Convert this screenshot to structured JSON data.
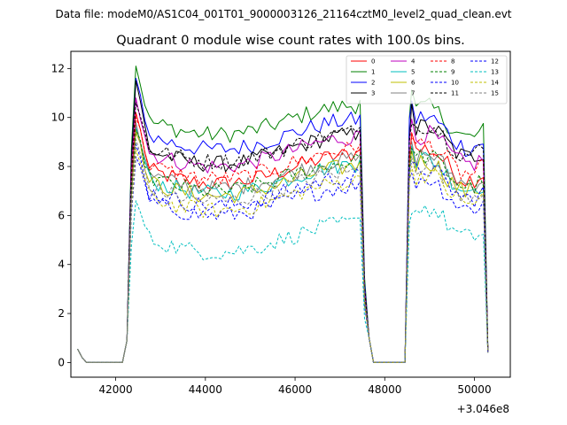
{
  "chart_data": {
    "type": "line",
    "suptitle": "Data file: modeM0/AS1C04_001T01_9000003126_21164cztM0_level2_quad_clean.evt",
    "title": "Quadrant 0 module wise count rates with 100.0s bins.",
    "xlabel": "",
    "ylabel": "",
    "x_offset_label": "+3.046e8",
    "xlim": [
      41000,
      50800
    ],
    "ylim": [
      -0.6,
      12.7
    ],
    "x_ticks": [
      42000,
      44000,
      46000,
      48000,
      50000
    ],
    "x_tick_labels": [
      "42000",
      "44000",
      "46000",
      "48000",
      "50000"
    ],
    "y_ticks": [
      0,
      2,
      4,
      6,
      8,
      10,
      12
    ],
    "y_tick_labels": [
      "0",
      "2",
      "4",
      "6",
      "8",
      "10",
      "12"
    ],
    "legend_position": "top-right",
    "time_bins": {
      "bin_width": 100,
      "seg1_start": 41150,
      "seg1_end": 47550,
      "gap1_end": 48500,
      "seg2_start": 48600,
      "seg2_end": 50350
    },
    "series": [
      {
        "name": "0",
        "color": "#ff0000",
        "dashed": false,
        "level": 7.9,
        "peak": 10.2,
        "seg2": 7.6,
        "tail": 0.45
      },
      {
        "name": "1",
        "color": "#008000",
        "dashed": false,
        "level": 9.9,
        "peak": 12.1,
        "seg2": 9.3,
        "tail": 0.6
      },
      {
        "name": "2",
        "color": "#0000ff",
        "dashed": false,
        "level": 9.3,
        "peak": 11.6,
        "seg2": 8.9,
        "tail": 0.55
      },
      {
        "name": "3",
        "color": "#000000",
        "dashed": false,
        "level": 8.7,
        "peak": 11.5,
        "seg2": 8.5,
        "tail": 0.55
      },
      {
        "name": "4",
        "color": "#bf00bf",
        "dashed": false,
        "level": 8.6,
        "peak": 10.8,
        "seg2": 8.2,
        "tail": 0.5
      },
      {
        "name": "5",
        "color": "#00bfbf",
        "dashed": false,
        "level": 7.5,
        "peak": 9.6,
        "seg2": 7.2,
        "tail": 0.45
      },
      {
        "name": "6",
        "color": "#bfbf00",
        "dashed": false,
        "level": 7.4,
        "peak": 9.4,
        "seg2": 7.1,
        "tail": 0.45
      },
      {
        "name": "7",
        "color": "#808080",
        "dashed": false,
        "level": 7.7,
        "peak": 9.8,
        "seg2": 7.4,
        "tail": 0.45
      },
      {
        "name": "8",
        "color": "#ff0000",
        "dashed": true,
        "level": 8.1,
        "peak": 10.0,
        "seg2": 7.8,
        "tail": 0.45
      },
      {
        "name": "9",
        "color": "#008000",
        "dashed": true,
        "level": 7.6,
        "peak": 9.5,
        "seg2": 7.3,
        "tail": 0.45
      },
      {
        "name": "10",
        "color": "#0000ff",
        "dashed": true,
        "level": 6.6,
        "peak": 8.4,
        "seg2": 6.4,
        "tail": 0.4
      },
      {
        "name": "11",
        "color": "#000000",
        "dashed": true,
        "level": 8.8,
        "peak": 10.6,
        "seg2": 8.6,
        "tail": 0.5
      },
      {
        "name": "12",
        "color": "#0000ff",
        "dashed": true,
        "level": 7.0,
        "peak": 8.9,
        "seg2": 6.8,
        "tail": 0.4
      },
      {
        "name": "13",
        "color": "#00bfbf",
        "dashed": true,
        "level": 5.1,
        "peak": 6.6,
        "seg2": 5.2,
        "tail": 0.4
      },
      {
        "name": "14",
        "color": "#bfbf00",
        "dashed": true,
        "level": 6.8,
        "peak": 8.7,
        "seg2": 6.6,
        "tail": 0.4
      },
      {
        "name": "15",
        "color": "#808080",
        "dashed": true,
        "level": 7.2,
        "peak": 9.1,
        "seg2": 7.0,
        "tail": 0.4
      }
    ]
  }
}
